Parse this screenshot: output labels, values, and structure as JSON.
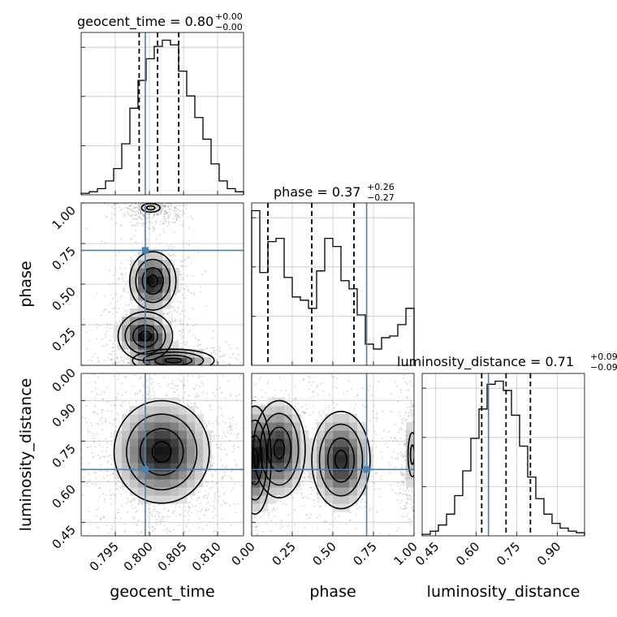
{
  "chart_data": {
    "type": "corner",
    "parameters": [
      {
        "name": "geocent_time",
        "axis_label": "geocent_time",
        "title_prefix": "geocent_time = ",
        "median": "0.80",
        "err_plus": "+0.00",
        "err_minus": "−0.00",
        "range": [
          0.79,
          0.8138
        ],
        "ticks": [
          0.795,
          0.8,
          0.805,
          0.81
        ],
        "tick_labels": [
          "0.795",
          "0.800",
          "0.805",
          "0.810"
        ],
        "quantiles": [
          0.7985,
          0.8012,
          0.8043
        ],
        "injection": 0.7994,
        "hist_counts": [
          0.01,
          0.02,
          0.04,
          0.09,
          0.17,
          0.33,
          0.56,
          0.74,
          0.88,
          0.96,
          1.0,
          0.97,
          0.8,
          0.64,
          0.5,
          0.36,
          0.2,
          0.09,
          0.04,
          0.02
        ]
      },
      {
        "name": "phase",
        "axis_label": "phase",
        "title_prefix": "phase = ",
        "median": "0.37",
        "err_plus": "+0.26",
        "err_minus": "−0.27",
        "range": [
          0.0,
          1.0
        ],
        "ticks": [
          0.0,
          0.25,
          0.5,
          0.75,
          1.0
        ],
        "tick_labels": [
          "0.00",
          "0.25",
          "0.50",
          "0.75",
          "1.00"
        ],
        "quantiles": [
          0.1,
          0.37,
          0.63
        ],
        "injection": 0.708,
        "hist_counts": [
          0.95,
          0.57,
          0.76,
          0.78,
          0.54,
          0.42,
          0.4,
          0.35,
          0.58,
          0.78,
          0.73,
          0.52,
          0.47,
          0.31,
          0.13,
          0.1,
          0.17,
          0.18,
          0.25,
          0.35
        ]
      },
      {
        "name": "luminosity_distance",
        "axis_label": "luminosity_distance",
        "title_prefix": "luminosity_distance = ",
        "median": "0.71",
        "err_plus": "+0.09",
        "err_minus": "−0.09",
        "range": [
          0.4,
          1.0
        ],
        "ticks": [
          0.45,
          0.6,
          0.75,
          0.9
        ],
        "tick_labels": [
          "0.45",
          "0.60",
          "0.75",
          "0.90"
        ],
        "quantiles": [
          0.62,
          0.71,
          0.8
        ],
        "injection": 0.645,
        "hist_counts": [
          0.01,
          0.03,
          0.07,
          0.14,
          0.26,
          0.42,
          0.63,
          0.82,
          0.98,
          1.0,
          0.94,
          0.78,
          0.58,
          0.38,
          0.24,
          0.14,
          0.08,
          0.05,
          0.03,
          0.02
        ]
      }
    ],
    "grid": true,
    "injection_color": "#4682b4",
    "quantile_style": "dashed black"
  }
}
